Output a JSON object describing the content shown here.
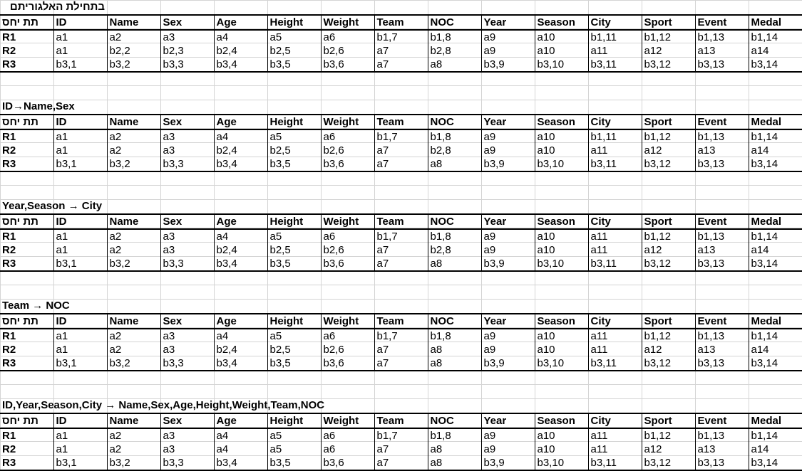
{
  "headers": [
    "ID",
    "Name",
    "Sex",
    "Age",
    "Height",
    "Weight",
    "Team",
    "NOC",
    "Year",
    "Season",
    "City",
    "Sport",
    "Event",
    "Medal"
  ],
  "corner_label": "תת יחס",
  "tables": [
    {
      "title": "בתחילת האלגוריתם",
      "rows": [
        {
          "label": "R1",
          "cells": [
            "a1",
            "a2",
            "a3",
            "a4",
            "a5",
            "a6",
            "b1,7",
            "b1,8",
            "a9",
            "a10",
            "b1,11",
            "b1,12",
            "b1,13",
            "b1,14"
          ]
        },
        {
          "label": "R2",
          "cells": [
            "a1",
            "b2,2",
            "b2,3",
            "b2,4",
            "b2,5",
            "b2,6",
            "a7",
            "b2,8",
            "a9",
            "a10",
            "a11",
            "a12",
            "a13",
            "a14"
          ]
        },
        {
          "label": "R3",
          "cells": [
            "b3,1",
            "b3,2",
            "b3,3",
            "b3,4",
            "b3,5",
            "b3,6",
            "a7",
            "a8",
            "b3,9",
            "b3,10",
            "b3,11",
            "b3,12",
            "b3,13",
            "b3,14"
          ]
        }
      ]
    },
    {
      "title": "ID→Name,Sex",
      "rows": [
        {
          "label": "R1",
          "cells": [
            "a1",
            "a2",
            "a3",
            "a4",
            "a5",
            "a6",
            "b1,7",
            "b1,8",
            "a9",
            "a10",
            "b1,11",
            "b1,12",
            "b1,13",
            "b1,14"
          ]
        },
        {
          "label": "R2",
          "cells": [
            "a1",
            "a2",
            "a3",
            "b2,4",
            "b2,5",
            "b2,6",
            "a7",
            "b2,8",
            "a9",
            "a10",
            "a11",
            "a12",
            "a13",
            "a14"
          ]
        },
        {
          "label": "R3",
          "cells": [
            "b3,1",
            "b3,2",
            "b3,3",
            "b3,4",
            "b3,5",
            "b3,6",
            "a7",
            "a8",
            "b3,9",
            "b3,10",
            "b3,11",
            "b3,12",
            "b3,13",
            "b3,14"
          ]
        }
      ]
    },
    {
      "title": "Year,Season → City",
      "rows": [
        {
          "label": "R1",
          "cells": [
            "a1",
            "a2",
            "a3",
            "a4",
            "a5",
            "a6",
            "b1,7",
            "b1,8",
            "a9",
            "a10",
            "a11",
            "b1,12",
            "b1,13",
            "b1,14"
          ]
        },
        {
          "label": "R2",
          "cells": [
            "a1",
            "a2",
            "a3",
            "b2,4",
            "b2,5",
            "b2,6",
            "a7",
            "b2,8",
            "a9",
            "a10",
            "a11",
            "a12",
            "a13",
            "a14"
          ]
        },
        {
          "label": "R3",
          "cells": [
            "b3,1",
            "b3,2",
            "b3,3",
            "b3,4",
            "b3,5",
            "b3,6",
            "a7",
            "a8",
            "b3,9",
            "b3,10",
            "b3,11",
            "b3,12",
            "b3,13",
            "b3,14"
          ]
        }
      ]
    },
    {
      "title": "Team → NOC",
      "rows": [
        {
          "label": "R1",
          "cells": [
            "a1",
            "a2",
            "a3",
            "a4",
            "a5",
            "a6",
            "b1,7",
            "b1,8",
            "a9",
            "a10",
            "a11",
            "b1,12",
            "b1,13",
            "b1,14"
          ]
        },
        {
          "label": "R2",
          "cells": [
            "a1",
            "a2",
            "a3",
            "b2,4",
            "b2,5",
            "b2,6",
            "a7",
            "a8",
            "a9",
            "a10",
            "a11",
            "a12",
            "a13",
            "a14"
          ]
        },
        {
          "label": "R3",
          "cells": [
            "b3,1",
            "b3,2",
            "b3,3",
            "b3,4",
            "b3,5",
            "b3,6",
            "a7",
            "a8",
            "b3,9",
            "b3,10",
            "b3,11",
            "b3,12",
            "b3,13",
            "b3,14"
          ]
        }
      ]
    },
    {
      "title": "ID,Year,Season,City → Name,Sex,Age,Height,Weight,Team,NOC",
      "rows": [
        {
          "label": "R1",
          "cells": [
            "a1",
            "a2",
            "a3",
            "a4",
            "a5",
            "a6",
            "b1,7",
            "b1,8",
            "a9",
            "a10",
            "a11",
            "b1,12",
            "b1,13",
            "b1,14"
          ]
        },
        {
          "label": "R2",
          "cells": [
            "a1",
            "a2",
            "a3",
            "a4",
            "a5",
            "a6",
            "a7",
            "a8",
            "a9",
            "a10",
            "a11",
            "a12",
            "a13",
            "a14"
          ]
        },
        {
          "label": "R3",
          "cells": [
            "b3,1",
            "b3,2",
            "b3,3",
            "b3,4",
            "b3,5",
            "b3,6",
            "a7",
            "a8",
            "b3,9",
            "b3,10",
            "b3,11",
            "b3,12",
            "b3,13",
            "b3,14"
          ]
        }
      ]
    }
  ]
}
